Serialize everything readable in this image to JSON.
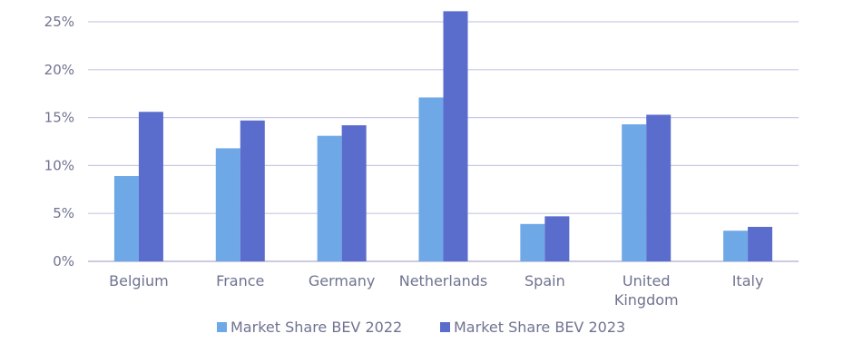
{
  "chart_data": {
    "type": "bar",
    "title": "",
    "xlabel": "",
    "ylabel": "",
    "ylim": [
      0,
      0.25
    ],
    "yticks": [
      0,
      0.05,
      0.1,
      0.15,
      0.2,
      0.25
    ],
    "ytick_labels": [
      "0%",
      "5%",
      "10%",
      "15%",
      "20%",
      "25%"
    ],
    "grid": true,
    "legend_position": "bottom",
    "categories": [
      [
        "Belgium"
      ],
      [
        "France"
      ],
      [
        "Germany"
      ],
      [
        "Netherlands"
      ],
      [
        "Spain"
      ],
      [
        "United",
        "Kingdom"
      ],
      [
        "Italy"
      ]
    ],
    "series": [
      {
        "name": "Market Share BEV 2022",
        "color": "#6fa8e6",
        "values": [
          0.089,
          0.118,
          0.131,
          0.171,
          0.039,
          0.143,
          0.032
        ]
      },
      {
        "name": "Market Share BEV 2023",
        "color": "#5a6ccc",
        "values": [
          0.156,
          0.147,
          0.142,
          0.261,
          0.047,
          0.153,
          0.036
        ]
      }
    ]
  }
}
